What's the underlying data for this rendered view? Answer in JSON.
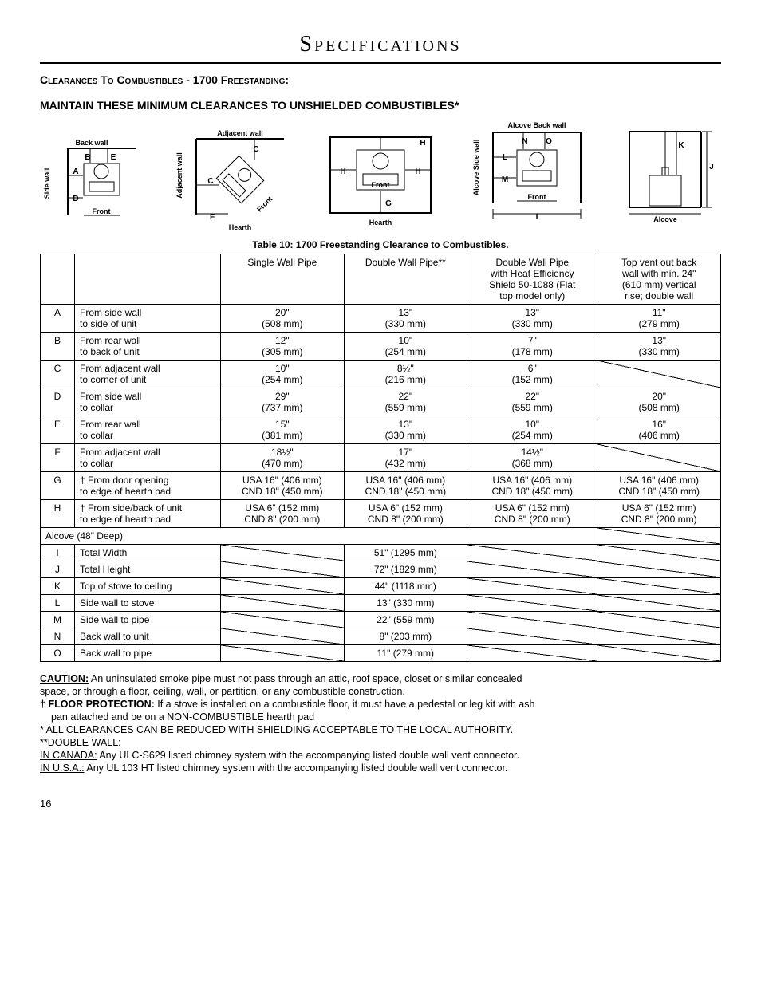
{
  "page": {
    "title": "Specifications",
    "section_heading": "Clearances To Combustibles - 1700 Freestanding:",
    "sub_heading": "MAINTAIN THESE MINIMUM CLEARANCES TO UNSHIELDED COMBUSTIBLES*",
    "page_number": "16"
  },
  "diagram_labels": {
    "d1": {
      "back": "Back wall",
      "side": "Side wall",
      "front": "Front",
      "A": "A",
      "B": "B",
      "D": "D",
      "E": "E"
    },
    "d2": {
      "adj_top": "Adjacent wall",
      "adj_side": "Adjacent wall",
      "front": "Front",
      "C": "C",
      "C2": "C",
      "F": "F"
    },
    "d3": {
      "hearth": "Hearth",
      "front": "Front",
      "H": "H",
      "G": "G"
    },
    "d4": {
      "back": "Alcove Back wall",
      "side": "Alcove Side wall",
      "front": "Front",
      "I": "I",
      "L": "L",
      "M": "M",
      "N": "N",
      "O": "O"
    },
    "d5": {
      "alcove": "Alcove",
      "J": "J",
      "K": "K"
    }
  },
  "table": {
    "caption": "Table 10: 1700 Freestanding Clearance to Combustibles.",
    "headers": {
      "c1": "Single Wall Pipe",
      "c2": "Double Wall Pipe**",
      "c3_l1": "Double Wall Pipe",
      "c3_l2": "with Heat Efficiency",
      "c3_l3": "Shield 50-1088 (Flat",
      "c3_l4": "top model only)",
      "c4_l1": "Top vent out back",
      "c4_l2": "wall with min. 24\"",
      "c4_l3": "(610 mm) vertical",
      "c4_l4": "rise; double wall"
    },
    "rows": [
      {
        "k": "A",
        "d1": "From side wall",
        "d2": "to side of unit",
        "v": [
          [
            "20\"",
            "(508 mm)"
          ],
          [
            "13\"",
            "(330 mm)"
          ],
          [
            "13\"",
            "(330 mm)"
          ],
          [
            "11\"",
            "(279 mm)"
          ]
        ]
      },
      {
        "k": "B",
        "d1": "From rear wall",
        "d2": "to back of unit",
        "v": [
          [
            "12\"",
            "(305 mm)"
          ],
          [
            "10\"",
            "(254 mm)"
          ],
          [
            "7\"",
            "(178 mm)"
          ],
          [
            "13\"",
            "(330 mm)"
          ]
        ]
      },
      {
        "k": "C",
        "d1": "From adjacent wall",
        "d2": "to corner of unit",
        "v": [
          [
            "10\"",
            "(254 mm)"
          ],
          [
            "8½\"",
            "(216 mm)"
          ],
          [
            "6\"",
            "(152 mm)"
          ],
          null
        ]
      },
      {
        "k": "D",
        "d1": "From side wall",
        "d2": "to collar",
        "v": [
          [
            "29\"",
            "(737 mm)"
          ],
          [
            "22\"",
            "(559 mm)"
          ],
          [
            "22\"",
            "(559 mm)"
          ],
          [
            "20\"",
            "(508 mm)"
          ]
        ]
      },
      {
        "k": "E",
        "d1": "From rear wall",
        "d2": "to collar",
        "v": [
          [
            "15\"",
            "(381 mm)"
          ],
          [
            "13\"",
            "(330 mm)"
          ],
          [
            "10\"",
            "(254 mm)"
          ],
          [
            "16\"",
            "(406 mm)"
          ]
        ]
      },
      {
        "k": "F",
        "d1": "From adjacent wall",
        "d2": "to collar",
        "v": [
          [
            "18½\"",
            "(470 mm)"
          ],
          [
            "17\"",
            "(432 mm)"
          ],
          [
            "14½\"",
            "(368 mm)"
          ],
          null
        ]
      },
      {
        "k": "G",
        "d1": "† From door opening",
        "d2": "to edge of hearth pad",
        "v": [
          [
            "USA 16\" (406 mm)",
            "CND 18\" (450 mm)"
          ],
          [
            "USA 16\" (406 mm)",
            "CND 18\" (450 mm)"
          ],
          [
            "USA 16\" (406 mm)",
            "CND 18\" (450 mm)"
          ],
          [
            "USA 16\" (406 mm)",
            "CND 18\" (450 mm)"
          ]
        ]
      },
      {
        "k": "H",
        "d1": "† From side/back of unit",
        "d2": "to edge of hearth pad",
        "v": [
          [
            "USA 6\" (152 mm)",
            "CND 8\" (200 mm)"
          ],
          [
            "USA 6\" (152 mm)",
            "CND 8\" (200 mm)"
          ],
          [
            "USA 6\" (152 mm)",
            "CND 8\" (200 mm)"
          ],
          [
            "USA 6\" (152 mm)",
            "CND 8\" (200 mm)"
          ]
        ]
      }
    ],
    "alcove_header": "Alcove (48\" Deep)",
    "alcove_rows": [
      {
        "k": "I",
        "d": "Total Width",
        "v": "51\" (1295 mm)"
      },
      {
        "k": "J",
        "d": "Total Height",
        "v": "72\" (1829 mm)"
      },
      {
        "k": "K",
        "d": "Top of stove to ceiling",
        "v": "44\" (1118 mm)"
      },
      {
        "k": "L",
        "d": "Side wall to stove",
        "v": "13\" (330 mm)"
      },
      {
        "k": "M",
        "d": "Side wall to pipe",
        "v": "22\" (559 mm)"
      },
      {
        "k": "N",
        "d": "Back wall to unit",
        "v": "8\" (203 mm)"
      },
      {
        "k": "O",
        "d": "Back wall to pipe",
        "v": "11\" (279 mm)"
      }
    ]
  },
  "notes": {
    "caution_label": "CAUTION:",
    "caution_l1": " An uninsulated smoke pipe must not pass through an attic, roof space, closet or similar concealed",
    "caution_l2": "space, or through a floor, ceiling, wall, or partition, or any combustible construction.",
    "floor_label": "FLOOR PROTECTION:",
    "floor_prefix": "† ",
    "floor_l1": " If a stove is installed on a combustible floor, it must have a pedestal or leg kit with ash",
    "floor_l2": "pan attached and be on a NON-COMBUSTIBLE hearth pad",
    "star1": "*  ALL CLEARANCES CAN BE REDUCED WITH SHIELDING ACCEPTABLE TO THE LOCAL AUTHORITY.",
    "star2": "**DOUBLE WALL:",
    "canada_label": "IN CANADA:",
    "canada_text": "  Any ULC-S629 listed chimney system with the accompanying listed double wall vent connector.",
    "usa_label": "IN U.S.A.:",
    "usa_text": " Any UL 103 HT listed chimney system with the accompanying listed double wall vent connector."
  }
}
